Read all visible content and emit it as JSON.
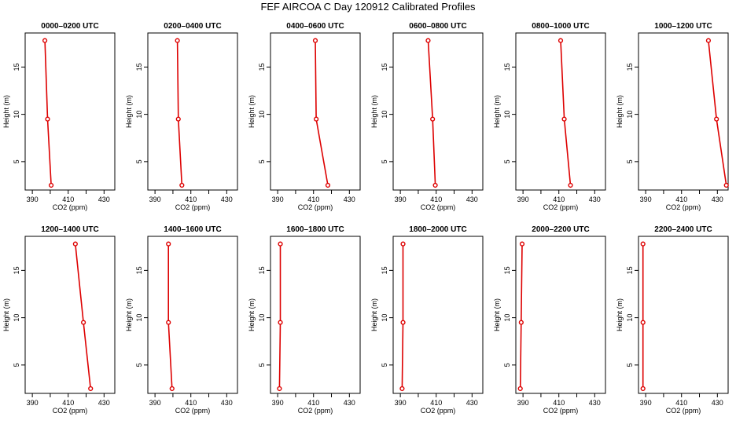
{
  "title": "FEF AIRCOA C  Day 120912  Calibrated Profiles",
  "chart_data": {
    "type": "line",
    "title": "FEF AIRCOA C  Day 120912  Calibrated Profiles",
    "xlabel": "CO2 (ppm)",
    "ylabel": "Height (m)",
    "xlim": [
      386,
      436
    ],
    "ylim": [
      2.0,
      18.6
    ],
    "xticks": [
      "390",
      "410",
      "430"
    ],
    "xtick_values": [
      390,
      410,
      430
    ],
    "xminor": [
      400,
      420
    ],
    "yticks": [
      "5",
      "10",
      "15"
    ],
    "ytick_values": [
      5,
      10,
      15
    ],
    "heights": [
      17.8,
      9.5,
      2.5
    ],
    "panels": [
      {
        "title": "0000–0200 UTC",
        "values": [
          397.0,
          398.5,
          400.5
        ]
      },
      {
        "title": "0200–0400 UTC",
        "values": [
          402.5,
          403.0,
          405.0
        ]
      },
      {
        "title": "0400–0600 UTC",
        "values": [
          411.0,
          411.5,
          418.0
        ]
      },
      {
        "title": "0600–0800 UTC",
        "values": [
          405.5,
          408.0,
          409.5
        ]
      },
      {
        "title": "0800–1000 UTC",
        "values": [
          411.0,
          413.0,
          416.5
        ]
      },
      {
        "title": "1000–1200 UTC",
        "values": [
          425.0,
          429.5,
          435.0
        ]
      },
      {
        "title": "1200–1400 UTC",
        "values": [
          414.0,
          418.5,
          422.5
        ]
      },
      {
        "title": "1400–1600 UTC",
        "values": [
          397.5,
          397.5,
          399.5
        ]
      },
      {
        "title": "1600–1800 UTC",
        "values": [
          391.5,
          391.5,
          391.0
        ]
      },
      {
        "title": "1800–2000 UTC",
        "values": [
          391.5,
          391.5,
          391.0
        ]
      },
      {
        "title": "2000–2200 UTC",
        "values": [
          389.5,
          389.0,
          388.5
        ]
      },
      {
        "title": "2200–2400 UTC",
        "values": [
          388.5,
          388.5,
          388.5
        ]
      }
    ]
  },
  "colors": {
    "line": "#dd0000",
    "axis": "#000000"
  }
}
